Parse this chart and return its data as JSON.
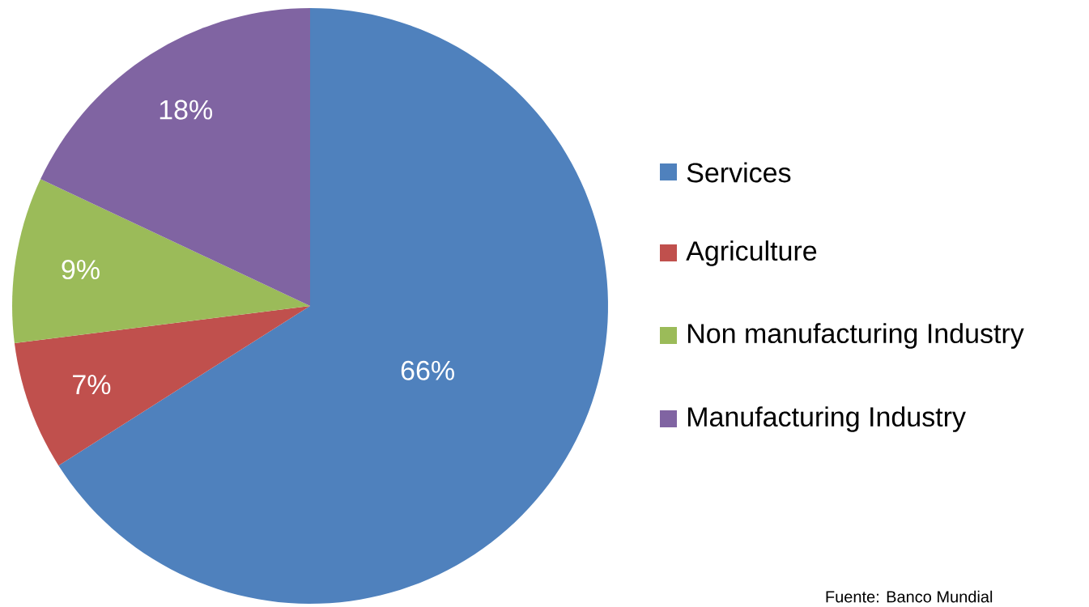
{
  "chart_data": {
    "type": "pie",
    "categories": [
      "Services",
      "Agriculture",
      "Non manufacturing Industry",
      "Manufacturing Industry"
    ],
    "values": [
      66,
      7,
      9,
      18
    ],
    "colors": [
      "#4f81bd",
      "#c0504d",
      "#9bbb59",
      "#8064a2"
    ],
    "value_labels": [
      "66%",
      "7%",
      "9%",
      "18%"
    ],
    "legend": "right",
    "annotations": [
      "Fuente: Banco Mundial"
    ]
  }
}
